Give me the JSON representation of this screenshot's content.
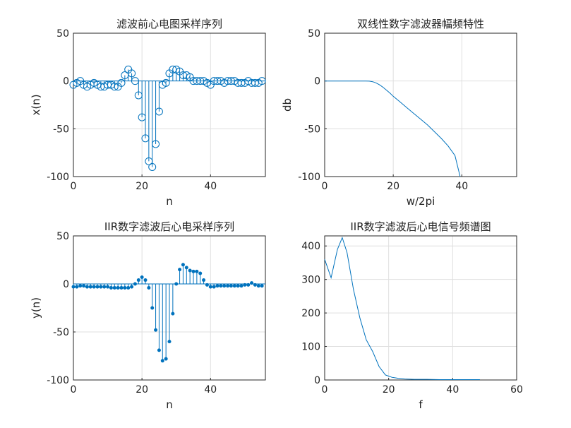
{
  "colors": {
    "series": "#0072BD",
    "axis": "#262626",
    "grid": "#dfdfdf"
  },
  "chart_data": [
    {
      "type": "stem",
      "marker": "open-circle",
      "title": "滤波前心电图采样序列",
      "xlabel": "n",
      "ylabel": "x(n)",
      "xlim": [
        0,
        56
      ],
      "ylim": [
        -100,
        50
      ],
      "xticks": [
        "0",
        "20",
        "40"
      ],
      "yticks": [
        "50",
        "0",
        "-50",
        "-100"
      ],
      "grid": true,
      "x": [
        0,
        1,
        2,
        3,
        4,
        5,
        6,
        7,
        8,
        9,
        10,
        11,
        12,
        13,
        14,
        15,
        16,
        17,
        18,
        19,
        20,
        21,
        22,
        23,
        24,
        25,
        26,
        27,
        28,
        29,
        30,
        31,
        32,
        33,
        34,
        35,
        36,
        37,
        38,
        39,
        40,
        41,
        42,
        43,
        44,
        45,
        46,
        47,
        48,
        49,
        50,
        51,
        52,
        53,
        54,
        55
      ],
      "y": [
        -4,
        -2,
        0,
        -4,
        -6,
        -4,
        -2,
        -4,
        -6,
        -6,
        -4,
        -4,
        -6,
        -6,
        -2,
        6,
        12,
        8,
        0,
        -15,
        -38,
        -60,
        -84,
        -90,
        -66,
        -32,
        -4,
        -2,
        8,
        12,
        12,
        10,
        6,
        6,
        4,
        0,
        0,
        0,
        0,
        -2,
        -4,
        0,
        0,
        0,
        -2,
        0,
        0,
        0,
        -2,
        -2,
        -2,
        0,
        -2,
        -2,
        -2,
        0
      ]
    },
    {
      "type": "line",
      "title": "双线性数字滤波器幅频特性",
      "xlabel": "w/2pi",
      "ylabel": "db",
      "xlim": [
        0,
        56
      ],
      "ylim": [
        -100,
        50
      ],
      "xticks": [
        "0",
        "20",
        "40"
      ],
      "yticks": [
        "50",
        "0",
        "-50",
        "-100"
      ],
      "grid": true,
      "x": [
        0,
        5,
        10,
        12,
        13,
        14,
        15,
        16,
        17,
        18,
        19,
        20,
        22,
        24,
        26,
        28,
        30,
        32,
        34,
        36,
        38,
        39.5
      ],
      "y": [
        0,
        0,
        0,
        0,
        -0.2,
        -0.8,
        -2,
        -4,
        -6.5,
        -9.5,
        -12.5,
        -16,
        -22,
        -28,
        -34,
        -40,
        -46,
        -53,
        -60,
        -68,
        -78,
        -100
      ]
    },
    {
      "type": "stem",
      "marker": "filled-dot",
      "title": "IIR数字滤波后心电采样序列",
      "xlabel": "n",
      "ylabel": "y(n)",
      "xlim": [
        0,
        56
      ],
      "ylim": [
        -100,
        50
      ],
      "xticks": [
        "0",
        "20",
        "40"
      ],
      "yticks": [
        "50",
        "0",
        "-50",
        "-100"
      ],
      "grid": true,
      "x": [
        0,
        1,
        2,
        3,
        4,
        5,
        6,
        7,
        8,
        9,
        10,
        11,
        12,
        13,
        14,
        15,
        16,
        17,
        18,
        19,
        20,
        21,
        22,
        23,
        24,
        25,
        26,
        27,
        28,
        29,
        30,
        31,
        32,
        33,
        34,
        35,
        36,
        37,
        38,
        39,
        40,
        41,
        42,
        43,
        44,
        45,
        46,
        47,
        48,
        49,
        50,
        51,
        52,
        53,
        54,
        55
      ],
      "y": [
        -3,
        -3,
        -2,
        -2,
        -3,
        -3,
        -3,
        -3,
        -3,
        -3,
        -3,
        -4,
        -4,
        -4,
        -4,
        -4,
        -4,
        -3,
        0,
        4,
        7,
        4,
        -4,
        -25,
        -48,
        -69,
        -80,
        -78,
        -60,
        -31,
        0,
        15,
        20,
        17,
        14,
        13,
        13,
        11,
        4,
        -1,
        -3,
        -3,
        -2,
        -2,
        -2,
        -2,
        -2,
        -2,
        -2,
        -2,
        -1,
        -1,
        1,
        -1,
        -2,
        -2
      ]
    },
    {
      "type": "line",
      "title": "IIR数字滤波后心电信号频谱图",
      "xlabel": "f",
      "ylabel": "",
      "xlim": [
        0,
        60
      ],
      "ylim": [
        0,
        430
      ],
      "xticks": [
        "0",
        "20",
        "40",
        "60"
      ],
      "yticks": [
        "400",
        "300",
        "200",
        "100",
        "0"
      ],
      "grid": true,
      "x": [
        0,
        2,
        4,
        5.5,
        7,
        9,
        11,
        13,
        15,
        17,
        19,
        21,
        23,
        25,
        28,
        32,
        36,
        40,
        44,
        48.5
      ],
      "y": [
        360,
        305,
        390,
        425,
        380,
        270,
        185,
        120,
        85,
        40,
        15,
        8,
        5,
        3,
        2,
        2,
        1,
        1,
        1,
        1
      ]
    }
  ]
}
